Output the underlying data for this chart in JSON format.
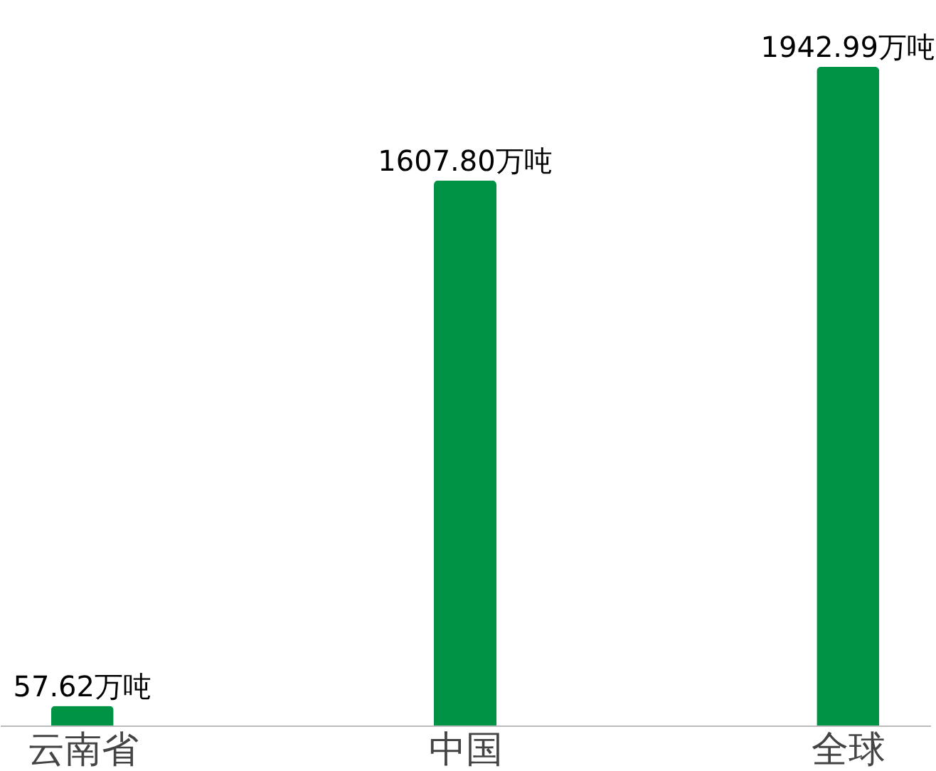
{
  "chart_data": {
    "type": "bar",
    "categories": [
      "云南省",
      "中国",
      "全球"
    ],
    "values": [
      57.62,
      1607.8,
      1942.99
    ],
    "value_labels": [
      "57.62万吨",
      "1607.80万吨",
      "1942.99万吨"
    ],
    "color": "#009245"
  }
}
